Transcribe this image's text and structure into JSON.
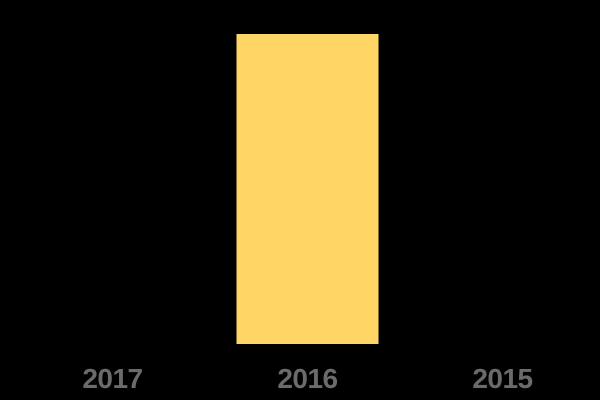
{
  "canvas": {
    "background": "#000000"
  },
  "chart_data": {
    "type": "bar",
    "categories": [
      "2017",
      "2016",
      "2015"
    ],
    "values": [
      0,
      1,
      0
    ],
    "title": "",
    "xlabel": "",
    "ylabel": "",
    "ylim": [
      0,
      1
    ],
    "grid": false,
    "legend": false,
    "background": "#000000",
    "bar_color": "#FFD666",
    "label_color": "#6B6B6B",
    "note": "Single solid yellow bar above the 2016 label filling the full plot height; categories shown in reverse chronological order; no y-axis, gridlines, titles, value labels or legend are visible. Values are normalized to relative bar height (1 = full plot height, 0 = no bar drawn)."
  }
}
